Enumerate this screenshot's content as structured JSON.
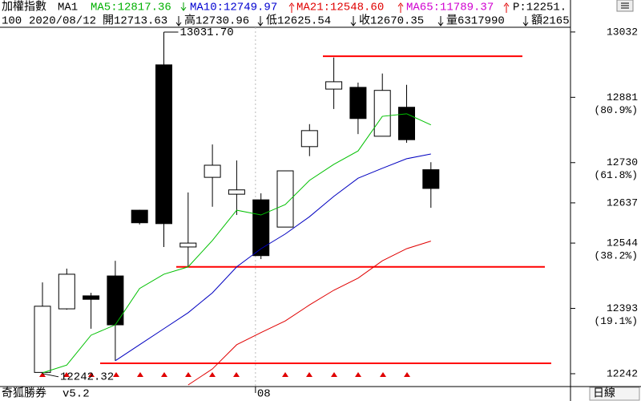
{
  "header": {
    "name": "加權指數",
    "period": "MA1",
    "ma5": "MA5:12817.36",
    "ma10": "MA10:12749.97",
    "ma21": "MA21:12548.60",
    "ma65": "MA65:11789.37",
    "p": "P:12251.",
    "count": "100",
    "date": "2020/08/12",
    "open": "開12713.63",
    "high": "高12730.96",
    "low": "低12625.54",
    "close": "收12670.35",
    "volume": "量6317990",
    "amount": "額2165"
  },
  "footer": {
    "app": "奇狐勝券",
    "version": "v5.2",
    "interval": "日線"
  },
  "chart_data": {
    "type": "candlestick",
    "categories": [
      null,
      null,
      null,
      null,
      null,
      null,
      null,
      null,
      null,
      "08",
      null,
      null,
      null,
      null,
      null,
      null,
      null
    ],
    "open": [
      12245,
      12392,
      12422,
      12468,
      12620,
      12956,
      12535,
      12696,
      12657,
      12644,
      12581,
      12767,
      12900,
      12904,
      12791,
      12858,
      12713.63
    ],
    "high": [
      12453,
      12485,
      12429,
      12503,
      12621,
      13031.7,
      12661,
      12772,
      12735,
      12659,
      12711,
      12819,
      12973,
      12915,
      12936,
      12910,
      12730.96
    ],
    "low": [
      12242.32,
      12390,
      12346,
      12272,
      12587,
      12535,
      12489,
      12628,
      12609,
      12507,
      12581,
      12745,
      12854,
      12796,
      12791,
      12776,
      12625.54
    ],
    "close": [
      12398,
      12472,
      12414,
      12355,
      12591,
      12589,
      12544,
      12724,
      12667,
      12515,
      12711,
      12804,
      12917,
      12832,
      12897,
      12783,
      12670.35
    ],
    "up_color": "#ffffff",
    "down_color": "#000000",
    "series": [
      {
        "color": "#00c000",
        "values": [
          12244,
          12262,
          12331,
          12355,
          12439,
          12472,
          12489,
          12550,
          12620,
          12609,
          12633,
          12689,
          12726,
          12757,
          12837,
          12843,
          12817.36
        ]
      },
      {
        "color": "#0000c0",
        "values": [
          null,
          null,
          null,
          12272,
          12309,
          12346,
          12383,
          12429,
          12489,
          12531,
          12565,
          12605,
          12652,
          12694,
          12717,
          12739,
          12749.97
        ]
      },
      {
        "color": "#e00000",
        "values": [
          null,
          null,
          null,
          null,
          null,
          null,
          12216,
          12253,
          12309,
          12337,
          12364,
          12401,
          12435,
          12463,
          12503,
          12531,
          12548.6
        ]
      }
    ],
    "levels": [
      12976,
      12489,
      12266
    ],
    "level_color": "#ff0000",
    "annotations": [
      {
        "value": 13031.7,
        "label": "13031.70"
      },
      {
        "value": 12242.32,
        "label": "12242.32"
      }
    ],
    "ylim": [
      12216,
      13080
    ],
    "yticks": [
      13032,
      12881,
      12730,
      12637,
      12544,
      12393,
      12242
    ],
    "fib_labels": [
      {
        "value": 12881,
        "label": "(80.9%)"
      },
      {
        "value": 12730,
        "label": "(61.8%)"
      },
      {
        "value": 12544,
        "label": "(38.2%)"
      },
      {
        "value": 12393,
        "label": "(19.1%)"
      }
    ]
  }
}
